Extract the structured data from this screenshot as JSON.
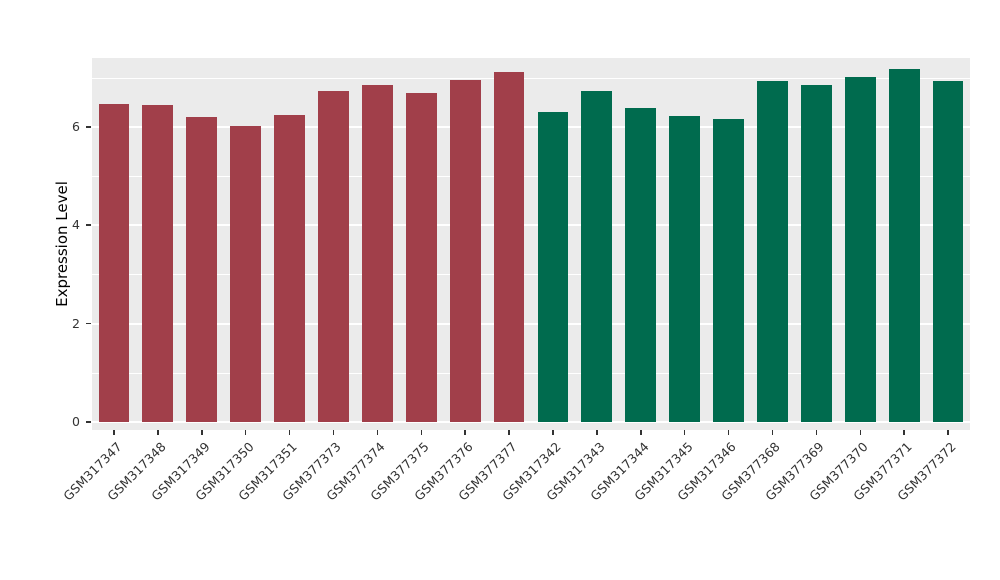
{
  "chart_data": {
    "type": "bar",
    "title": "",
    "xlabel": "",
    "ylabel": "Expression Level",
    "ylim": [
      0,
      7.4
    ],
    "yticks": [
      0,
      2,
      4,
      6
    ],
    "yticks_minor": [
      1,
      3,
      5,
      7
    ],
    "grid": true,
    "legend": "none",
    "panel_bg": "#EBEBEB",
    "grid_color": "#FFFFFF",
    "group_colors": {
      "left-group": "#A13F4A",
      "right-group": "#006B4E"
    },
    "categories": [
      "GSM317347",
      "GSM317348",
      "GSM317349",
      "GSM317350",
      "GSM317351",
      "GSM377373",
      "GSM377374",
      "GSM377375",
      "GSM377376",
      "GSM377377",
      "GSM317342",
      "GSM317343",
      "GSM317344",
      "GSM317345",
      "GSM317346",
      "GSM377368",
      "GSM377369",
      "GSM377370",
      "GSM377371",
      "GSM377372"
    ],
    "values": [
      6.47,
      6.45,
      6.2,
      6.02,
      6.25,
      6.72,
      6.85,
      6.68,
      6.95,
      7.12,
      6.3,
      6.72,
      6.38,
      6.23,
      6.17,
      6.93,
      6.85,
      7.02,
      7.17,
      6.93
    ],
    "bar_colors": [
      "#A13F4A",
      "#A13F4A",
      "#A13F4A",
      "#A13F4A",
      "#A13F4A",
      "#A13F4A",
      "#A13F4A",
      "#A13F4A",
      "#A13F4A",
      "#A13F4A",
      "#006B4E",
      "#006B4E",
      "#006B4E",
      "#006B4E",
      "#006B4E",
      "#006B4E",
      "#006B4E",
      "#006B4E",
      "#006B4E",
      "#006B4E"
    ]
  }
}
